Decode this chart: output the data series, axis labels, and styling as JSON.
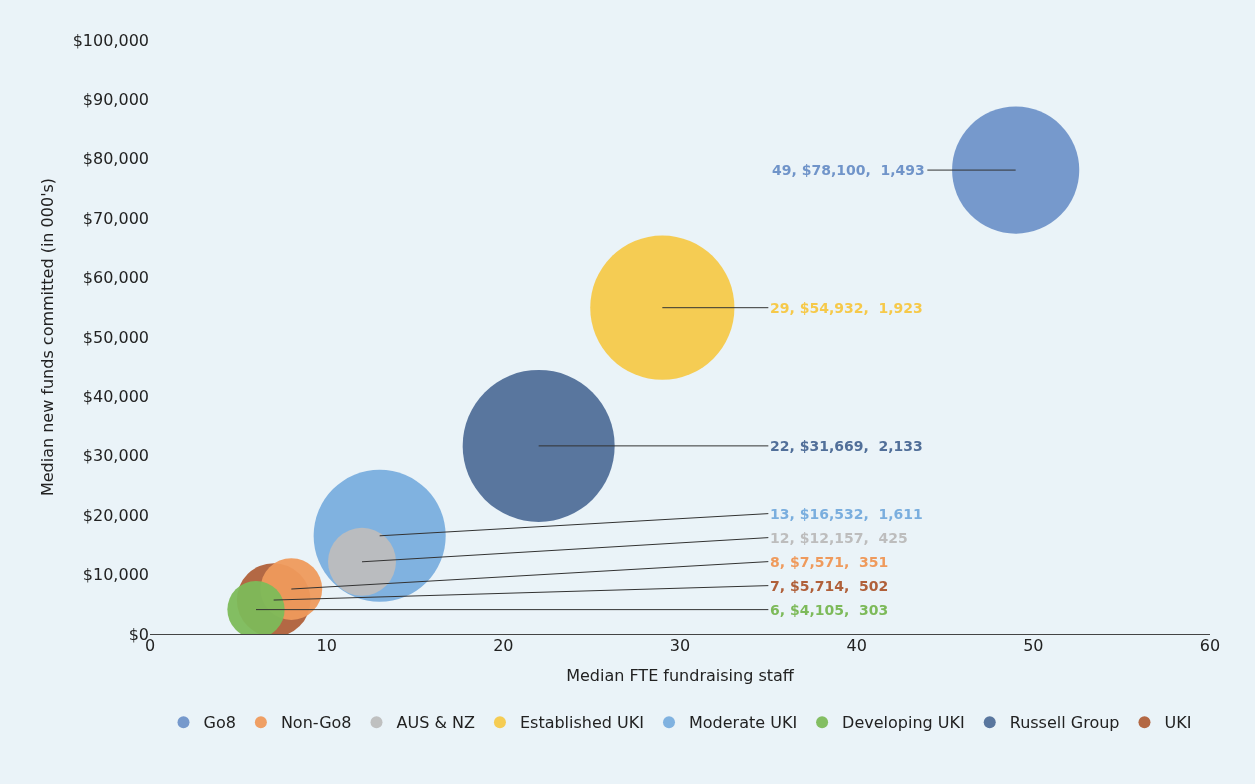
{
  "chart_data": {
    "type": "bubble",
    "xlabel": "Median FTE fundraising staff",
    "ylabel": "Median new funds committed (in 000's)",
    "xlim": [
      0,
      60
    ],
    "xticks": [
      0,
      10,
      20,
      30,
      40,
      50,
      60
    ],
    "ylim": [
      0,
      100000
    ],
    "yticks": [
      {
        "value": 0,
        "label": "$0"
      },
      {
        "value": 10000,
        "label": "$10,000"
      },
      {
        "value": 20000,
        "label": "$20,000"
      },
      {
        "value": 30000,
        "label": "$30,000"
      },
      {
        "value": 40000,
        "label": "$40,000"
      },
      {
        "value": 50000,
        "label": "$50,000"
      },
      {
        "value": 60000,
        "label": "$60,000"
      },
      {
        "value": 70000,
        "label": "$70,000"
      },
      {
        "value": 80000,
        "label": "$80,000"
      },
      {
        "value": 90000,
        "label": "$90,000"
      },
      {
        "value": 100000,
        "label": "$100,000"
      }
    ],
    "grid": false,
    "legend": "bottom",
    "series": [
      {
        "name": "Go8",
        "color": "#7094c9",
        "x": [
          49
        ],
        "values": [
          78100
        ],
        "sizes": [
          0.7
        ],
        "value_labels": [
          "49, $78,100,  1,493"
        ]
      },
      {
        "name": "Non-Go8",
        "color": "#ef9a5c",
        "x": [
          8
        ],
        "values": [
          7571
        ],
        "sizes": [
          0.165
        ],
        "value_labels": [
          "8, $7,571,  351"
        ]
      },
      {
        "name": "AUS & NZ",
        "color": "#bdbdbd",
        "x": [
          12
        ],
        "values": [
          12157
        ],
        "sizes": [
          0.2
        ],
        "value_labels": [
          "12, $12,157,  425"
        ]
      },
      {
        "name": "Established UKI",
        "color": "#f6c94a",
        "x": [
          29
        ],
        "values": [
          54932
        ],
        "sizes": [
          0.9
        ],
        "value_labels": [
          "29, $54,932,  1,923"
        ]
      },
      {
        "name": "Moderate UKI",
        "color": "#7aaede",
        "x": [
          13
        ],
        "values": [
          16532
        ],
        "sizes": [
          0.755
        ],
        "value_labels": [
          "13, $16,532,  1,611"
        ]
      },
      {
        "name": "Developing UKI",
        "color": "#7dba5a",
        "x": [
          6
        ],
        "values": [
          4105
        ],
        "sizes": [
          0.142
        ],
        "value_labels": [
          "6, $4,105,  303"
        ]
      },
      {
        "name": "Russell Group",
        "color": "#516f99",
        "x": [
          22
        ],
        "values": [
          31669
        ],
        "sizes": [
          1
        ],
        "value_labels": [
          "22, $31,669,  2,133"
        ]
      },
      {
        "name": "UKI",
        "color": "#b0603a",
        "x": [
          7
        ],
        "values": [
          5714
        ],
        "sizes": [
          0.235
        ],
        "value_labels": [
          "7, $5,714,  502"
        ]
      }
    ]
  }
}
